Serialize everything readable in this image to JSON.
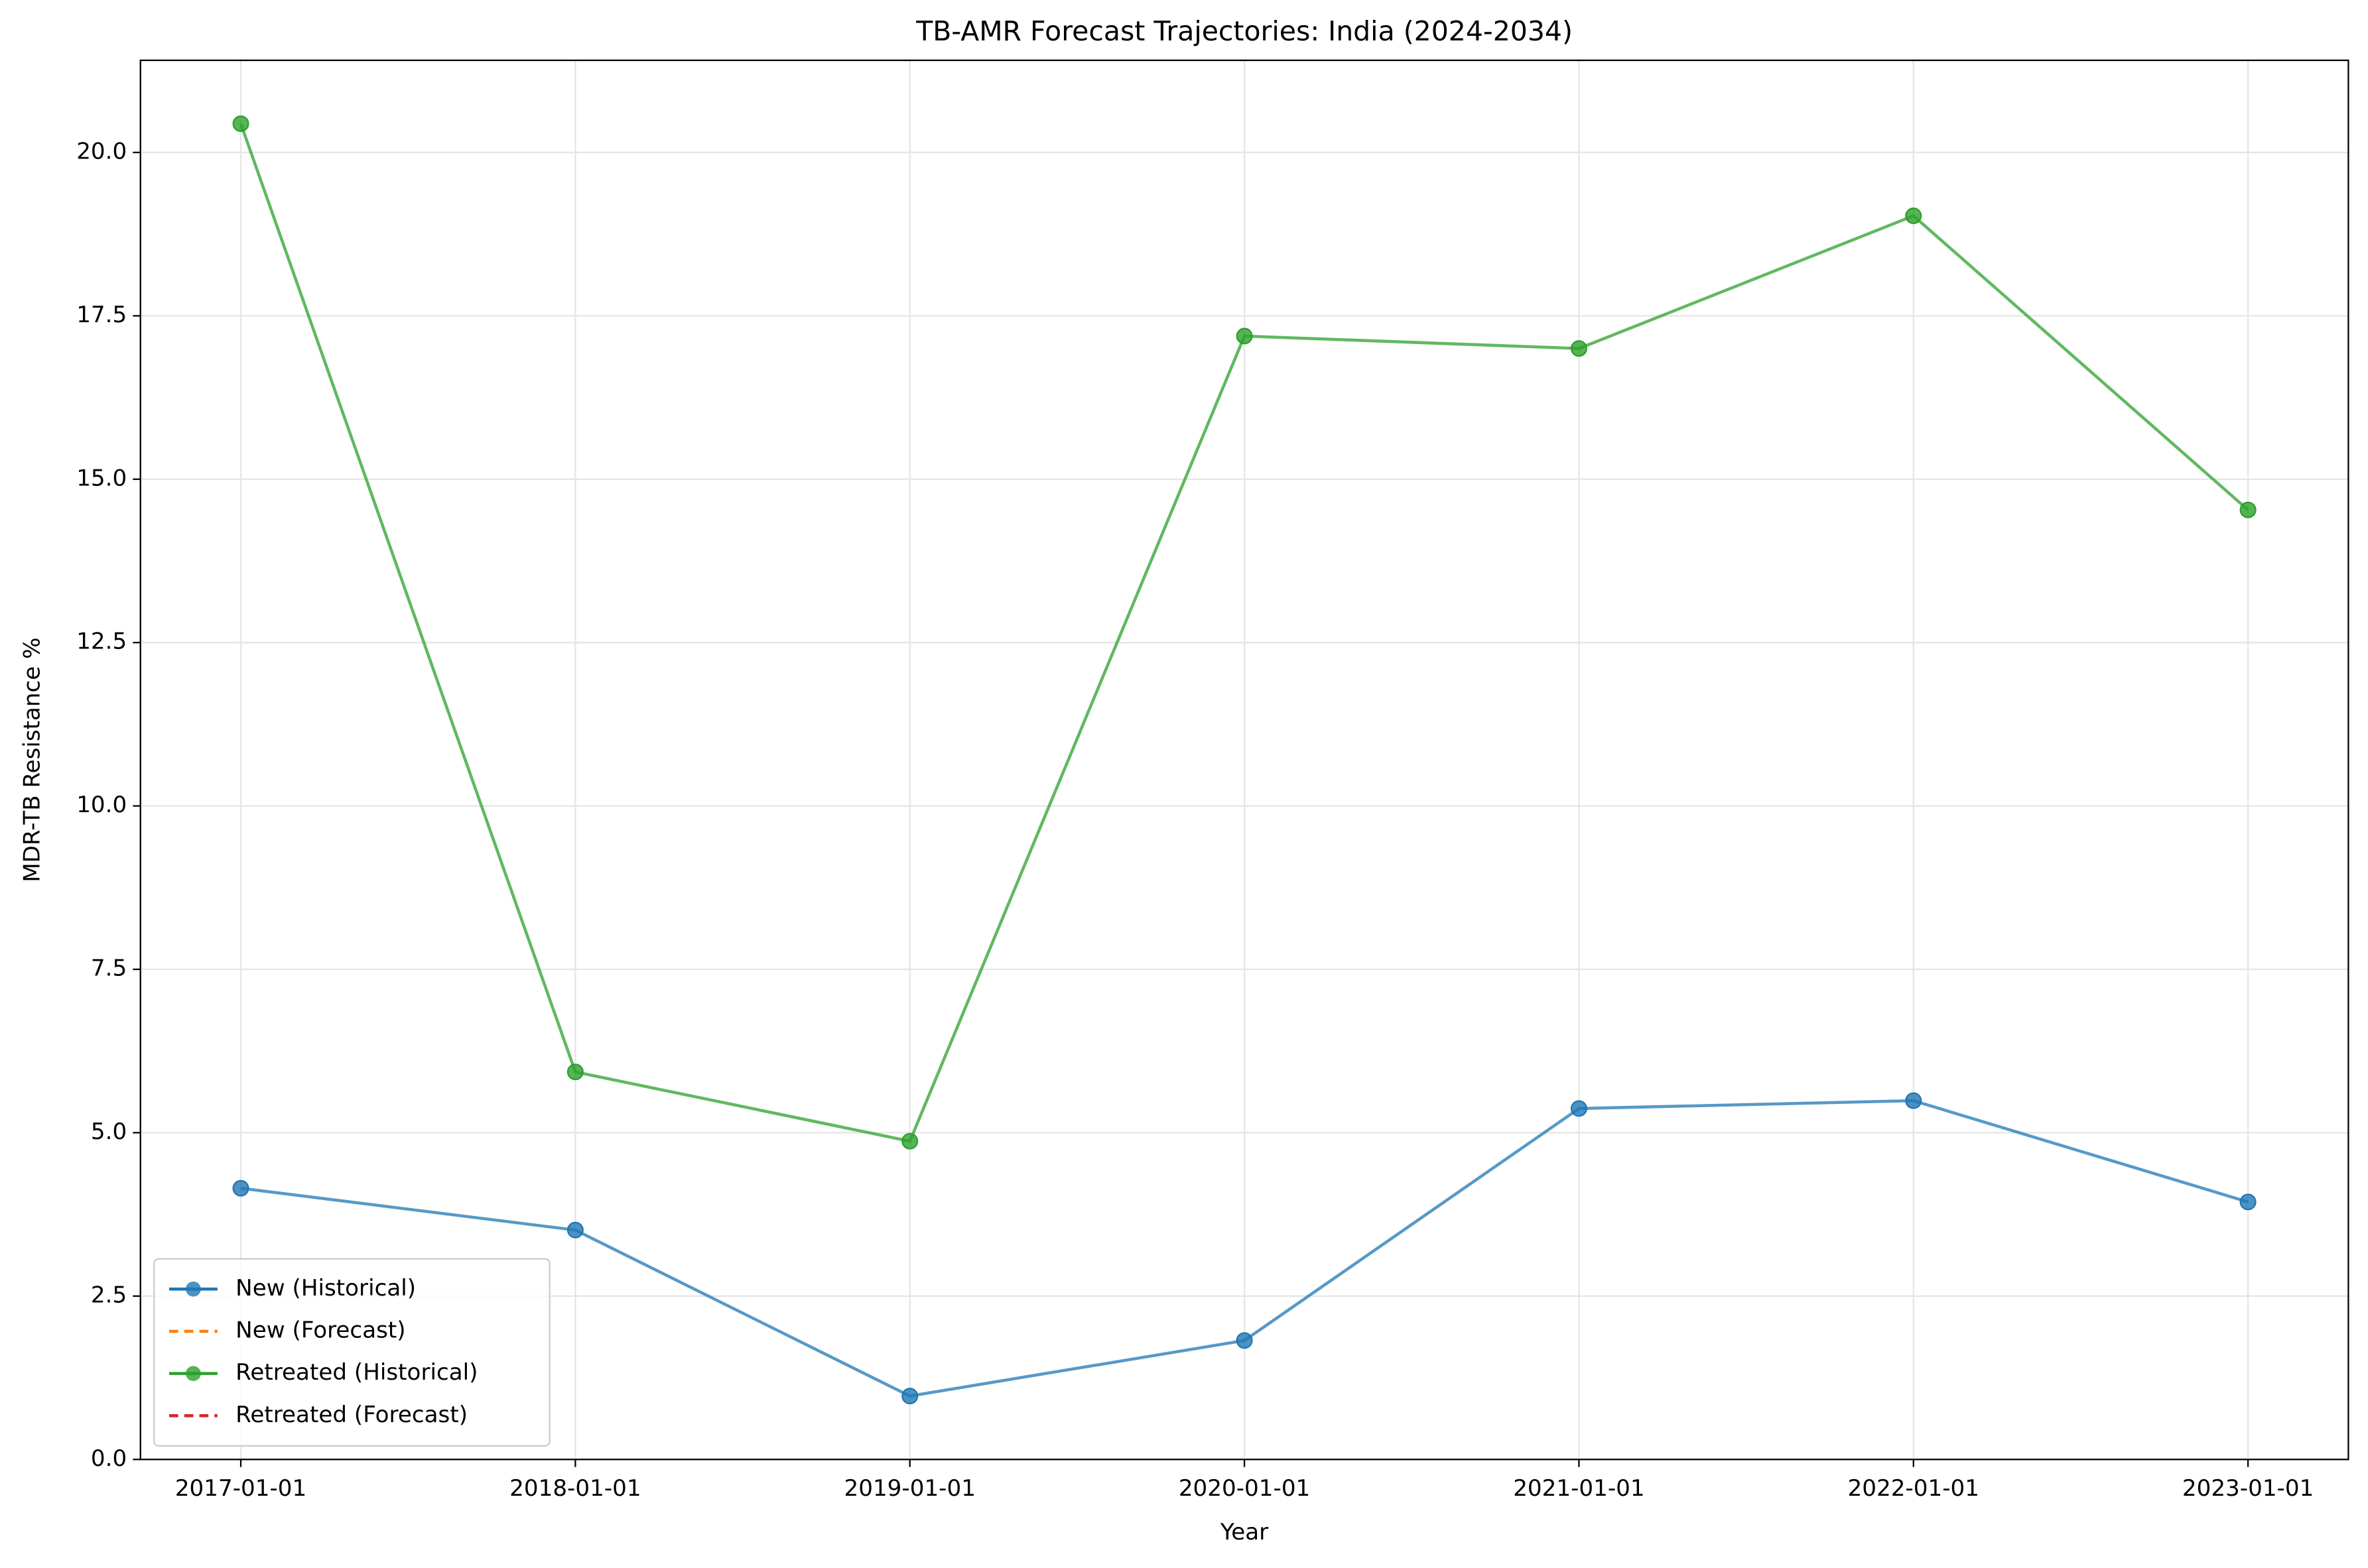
{
  "chart_data": {
    "type": "line",
    "title": "TB-AMR Forecast Trajectories: India (2024-2034)",
    "x_label": "Year",
    "y_label": "MDR-TB Resistance %",
    "categories": [
      "2017-01-01",
      "2018-01-01",
      "2019-01-01",
      "2020-01-01",
      "2021-01-01",
      "2022-01-01",
      "2023-01-01"
    ],
    "series": [
      {
        "name": "New (Historical)",
        "color": "#1f77b4",
        "linestyle": "solid",
        "marker": "o",
        "values": [
          4.15,
          3.51,
          0.97,
          1.82,
          5.37,
          5.49,
          3.94
        ]
      },
      {
        "name": "New (Forecast)",
        "color": "#ff7f0e",
        "linestyle": "dashed",
        "marker": null,
        "values": [
          null,
          null,
          null,
          null,
          null,
          null,
          null
        ]
      },
      {
        "name": "Retreated (Historical)",
        "color": "#2ca02c",
        "linestyle": "solid",
        "marker": "o",
        "values": [
          20.44,
          5.93,
          4.87,
          17.19,
          17.0,
          19.03,
          14.53
        ]
      },
      {
        "name": "Retreated (Forecast)",
        "color": "#d62728",
        "linestyle": "dashed",
        "marker": null,
        "values": [
          null,
          null,
          null,
          null,
          null,
          null,
          null
        ]
      }
    ],
    "ylim": [
      0,
      21.41
    ],
    "yticks": [
      {
        "value": 0,
        "label": "0.0"
      },
      {
        "value": 2.5,
        "label": "2.5"
      },
      {
        "value": 5,
        "label": "5.0"
      },
      {
        "value": 7.5,
        "label": "7.5"
      },
      {
        "value": 10,
        "label": "10.0"
      },
      {
        "value": 12.5,
        "label": "12.5"
      },
      {
        "value": 15,
        "label": "15.0"
      },
      {
        "value": 17.5,
        "label": "17.5"
      },
      {
        "value": 20,
        "label": "20.0"
      }
    ],
    "grid": true,
    "legend": "lower left"
  }
}
